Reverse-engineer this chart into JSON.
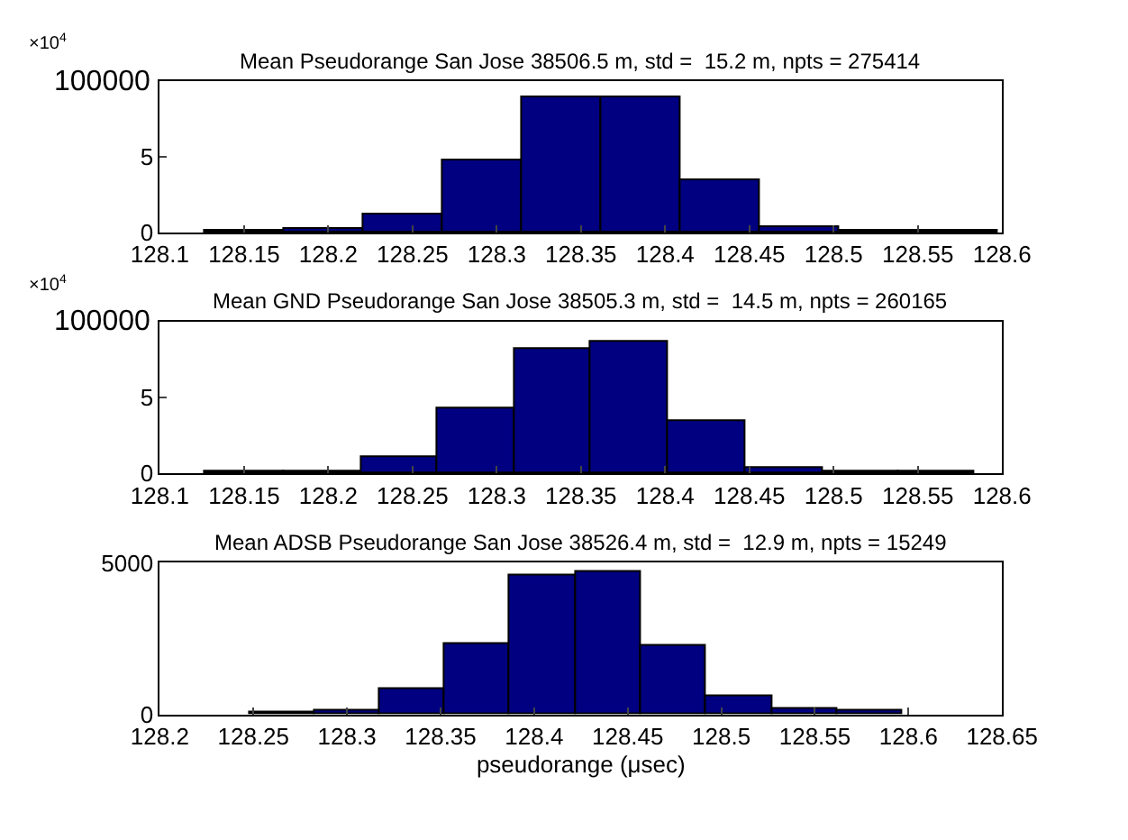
{
  "chart_data": [
    {
      "type": "histogram",
      "title": "Mean Pseudorange San Jose 38506.5 m, std =  15.2 m, npts = 275414",
      "color": "#000080",
      "bins": [
        128.127,
        128.174,
        128.221,
        128.268,
        128.315,
        128.362,
        128.409,
        128.456,
        128.503,
        128.55,
        128.597
      ],
      "values": [
        0.1,
        0.3,
        1.2,
        4.8,
        8.9,
        8.9,
        3.4,
        0.4,
        0.1,
        0.1
      ],
      "xlim": [
        128.1,
        128.6
      ],
      "xticks": [
        128.1,
        128.15,
        128.2,
        128.25,
        128.3,
        128.35,
        128.4,
        128.45,
        128.5,
        128.55,
        128.6
      ],
      "ylim": [
        0,
        10
      ],
      "yticks": [
        0,
        5
      ],
      "annotations": [
        "×10$^{4}$",
        "100000"
      ]
    },
    {
      "type": "histogram",
      "title": "Mean GND Pseudorange San Jose 38505.3 m, std =  14.5 m, npts = 260165",
      "color": "#000080",
      "bins": [
        128.127,
        128.174,
        128.22,
        128.265,
        128.311,
        128.356,
        128.402,
        128.448,
        128.494,
        128.539,
        128.584
      ],
      "values": [
        0.1,
        0.1,
        1.1,
        4.3,
        8.2,
        8.7,
        3.5,
        0.4,
        0.1,
        0.1
      ],
      "xlim": [
        128.1,
        128.6
      ],
      "xticks": [
        128.1,
        128.15,
        128.2,
        128.25,
        128.3,
        128.35,
        128.4,
        128.45,
        128.5,
        128.55,
        128.6
      ],
      "ylim": [
        0,
        10
      ],
      "yticks": [
        0,
        5
      ],
      "annotations": [
        "×10$^{4}$",
        "100000"
      ]
    },
    {
      "type": "histogram",
      "title": "Mean ADSB Pseudorange San Jose 38526.4 m, std =  12.9 m, npts = 15249",
      "xlabel": "pseudorange (μsec)",
      "color": "#000080",
      "bins": [
        128.248,
        128.283,
        128.317,
        128.352,
        128.387,
        128.422,
        128.457,
        128.492,
        128.527,
        128.562,
        128.597
      ],
      "values": [
        70,
        150,
        850,
        2350,
        4600,
        4700,
        2250,
        600,
        200,
        100
      ],
      "xlim": [
        128.2,
        128.65
      ],
      "xticks": [
        128.2,
        128.25,
        128.3,
        128.35,
        128.4,
        128.45,
        128.5,
        128.55,
        128.6,
        128.65
      ],
      "ylim": [
        0,
        5000
      ],
      "yticks": [
        0,
        5000
      ]
    }
  ]
}
